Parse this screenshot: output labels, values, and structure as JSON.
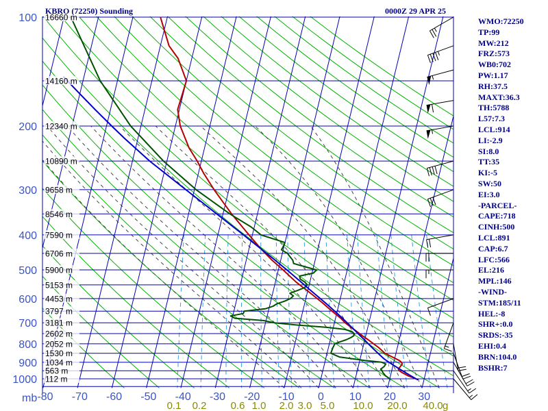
{
  "header": {
    "station": "KBRO (72250) Sounding",
    "valid": "0000Z 29 APR 25"
  },
  "indices": [
    "WMO:72250",
    "TP:99",
    "MW:212",
    "FRZ:573",
    "WB0:702",
    "PW:1.17",
    "RH:37.5",
    "MAXT:36.3",
    "TH:5788",
    "L57:7.3",
    "LCL:914",
    "LI:-2.9",
    "SI:8.0",
    "TT:35",
    "KI:-5",
    "SW:50",
    "EI:3.0",
    "-PARCEL-",
    "CAPE:718",
    "CINH:500",
    "LCL:891",
    "CAP:6.7",
    "LFC:566",
    "EL:216",
    "MPL:146",
    "-WIND-",
    "STM:185/11",
    "HEL:-8",
    "SHR+:0.0",
    "SRDS:-35",
    "EHI:0.4",
    "BRN:104.0",
    "BSHR:7"
  ],
  "chart_data": {
    "type": "line",
    "diagram": "skew-T log-P",
    "axis_unit_label": "mb",
    "pressure_levels": [
      100,
      200,
      300,
      400,
      500,
      600,
      700,
      800,
      900,
      1000
    ],
    "pressure_ticks": [
      "100",
      "200",
      "300",
      "400",
      "500",
      "600",
      "700",
      "800",
      "900",
      "1000"
    ],
    "pressure_lim": [
      100,
      1050
    ],
    "temperature_ticks": [
      "-80",
      "-70",
      "-60",
      "-50",
      "-40",
      "-30",
      "-20",
      "-10",
      "0",
      "10",
      "20",
      "30"
    ],
    "mixing_ratio_labels": [
      "0.1",
      "0.2",
      "0.6",
      "1.0",
      "2.0",
      "3.0",
      "5.0",
      "10.0",
      "20.0",
      "40.0"
    ],
    "mixing_ratio_unit": "g",
    "height_labels": [
      {
        "p": 100,
        "text": "16660 m"
      },
      {
        "p": 150,
        "text": "14160 m"
      },
      {
        "p": 200,
        "text": "12340 m"
      },
      {
        "p": 250,
        "text": "10890 m"
      },
      {
        "p": 300,
        "text": "9658 m"
      },
      {
        "p": 350,
        "text": "8546 m"
      },
      {
        "p": 400,
        "text": "7590 m"
      },
      {
        "p": 450,
        "text": "6706 m"
      },
      {
        "p": 500,
        "text": "5900 m"
      },
      {
        "p": 550,
        "text": "5153 m"
      },
      {
        "p": 600,
        "text": "4453 m"
      },
      {
        "p": 650,
        "text": "3797 m"
      },
      {
        "p": 700,
        "text": "3181 m"
      },
      {
        "p": 750,
        "text": "2602 m"
      },
      {
        "p": 800,
        "text": "2052 m"
      },
      {
        "p": 850,
        "text": "1530 m"
      },
      {
        "p": 900,
        "text": "1034 m"
      },
      {
        "p": 950,
        "text": "563 m"
      },
      {
        "p": 1000,
        "text": "112 m"
      }
    ],
    "series": [
      {
        "name": "Temperature",
        "color": "#b40000",
        "p": [
          1006,
          1000,
          980,
          960,
          950,
          940,
          925,
          910,
          900,
          890,
          870,
          850,
          820,
          800,
          780,
          760,
          730,
          700,
          680,
          660,
          640,
          620,
          600,
          580,
          560,
          540,
          520,
          500,
          470,
          440,
          400,
          350,
          300,
          270,
          250,
          230,
          200,
          180,
          150,
          130,
          120,
          100
        ],
        "t": [
          28.3,
          27.6,
          25.0,
          23.0,
          22.2,
          21.8,
          22.2,
          22.6,
          22.2,
          21.5,
          19.2,
          16.8,
          14.6,
          12.8,
          11.0,
          9.0,
          6.1,
          3.1,
          1.5,
          -0.5,
          -2.5,
          -4.5,
          -6.7,
          -9.0,
          -11.5,
          -14.0,
          -16.3,
          -18.6,
          -22.5,
          -26.2,
          -31.0,
          -37.5,
          -44.3,
          -48.5,
          -51.2,
          -54.5,
          -58.6,
          -60.5,
          -60.0,
          -64.0,
          -67.5,
          -72.0
        ]
      },
      {
        "name": "Dewpoint",
        "color": "#005000",
        "p": [
          1006,
          1000,
          980,
          960,
          950,
          940,
          925,
          910,
          900,
          890,
          870,
          850,
          820,
          800,
          790,
          780,
          770,
          760,
          750,
          740,
          730,
          720,
          710,
          700,
          690,
          680,
          670,
          660,
          650,
          640,
          630,
          620,
          610,
          600,
          590,
          580,
          570,
          560,
          550,
          540,
          530,
          520,
          510,
          500,
          490,
          480,
          470,
          460,
          450,
          440,
          430,
          420,
          400,
          380,
          350,
          300,
          250,
          200,
          150,
          100
        ],
        "t": [
          20.2,
          20.0,
          18.5,
          17.5,
          17.2,
          16.7,
          17.5,
          17.8,
          16.5,
          11.5,
          3.8,
          1.1,
          1.3,
          1.6,
          3.0,
          4.6,
          5.7,
          6.5,
          6.5,
          5.7,
          3.4,
          -2.2,
          -10.7,
          -17.5,
          -20.8,
          -29.2,
          -30.6,
          -27.1,
          -27.0,
          -21.0,
          -19.0,
          -18.0,
          -16.0,
          -14.5,
          -13.8,
          -15.0,
          -13.0,
          -11.2,
          -10.5,
          -11.5,
          -13.0,
          -13.4,
          -9.6,
          -8.9,
          -12.5,
          -16.0,
          -16.5,
          -17.5,
          -18.5,
          -20.5,
          -20.2,
          -20.0,
          -27.5,
          -31.0,
          -38.0,
          -49.5,
          -61.0,
          -73.0,
          -85.0,
          -98.0
        ]
      },
      {
        "name": "Parcel",
        "color": "#0000c8",
        "p": [
          1006,
          1000,
          980,
          960,
          940,
          920,
          900,
          891,
          880,
          860,
          840,
          820,
          800,
          780,
          760,
          740,
          720,
          700,
          680,
          660,
          640,
          620,
          600,
          580,
          566,
          550,
          520,
          500,
          470,
          440,
          400,
          350,
          300,
          250,
          216,
          200,
          180,
          160,
          146
        ],
        "t": [
          28.3,
          27.6,
          25.8,
          24.0,
          22.2,
          20.4,
          18.6,
          17.8,
          16.9,
          15.5,
          14.1,
          12.7,
          11.3,
          9.9,
          8.4,
          6.9,
          5.3,
          3.7,
          2.0,
          0.2,
          -1.7,
          -3.7,
          -5.8,
          -8.0,
          -9.6,
          -11.4,
          -15.0,
          -17.5,
          -21.6,
          -26.1,
          -32.6,
          -41.8,
          -52.5,
          -65.0,
          -74.0,
          -78.5,
          -84.5,
          -91.0,
          -96.0
        ]
      }
    ],
    "wind_barbs": [
      {
        "p": 100,
        "dir": 240,
        "spd": 25
      },
      {
        "p": 120,
        "dir": 250,
        "spd": 45
      },
      {
        "p": 140,
        "dir": 255,
        "spd": 55
      },
      {
        "p": 170,
        "dir": 260,
        "spd": 60
      },
      {
        "p": 200,
        "dir": 260,
        "spd": 55
      },
      {
        "p": 250,
        "dir": 255,
        "spd": 40
      },
      {
        "p": 300,
        "dir": 250,
        "spd": 30
      },
      {
        "p": 400,
        "dir": 260,
        "spd": 20
      },
      {
        "p": 450,
        "dir": 270,
        "spd": 20
      },
      {
        "p": 500,
        "dir": 270,
        "spd": 15
      },
      {
        "p": 600,
        "dir": 250,
        "spd": 10
      },
      {
        "p": 700,
        "dir": 200,
        "spd": 15
      },
      {
        "p": 800,
        "dir": 170,
        "spd": 20
      },
      {
        "p": 850,
        "dir": 160,
        "spd": 20
      },
      {
        "p": 900,
        "dir": 150,
        "spd": 20
      },
      {
        "p": 950,
        "dir": 145,
        "spd": 15
      },
      {
        "p": 1000,
        "dir": 140,
        "spd": 15
      }
    ]
  }
}
